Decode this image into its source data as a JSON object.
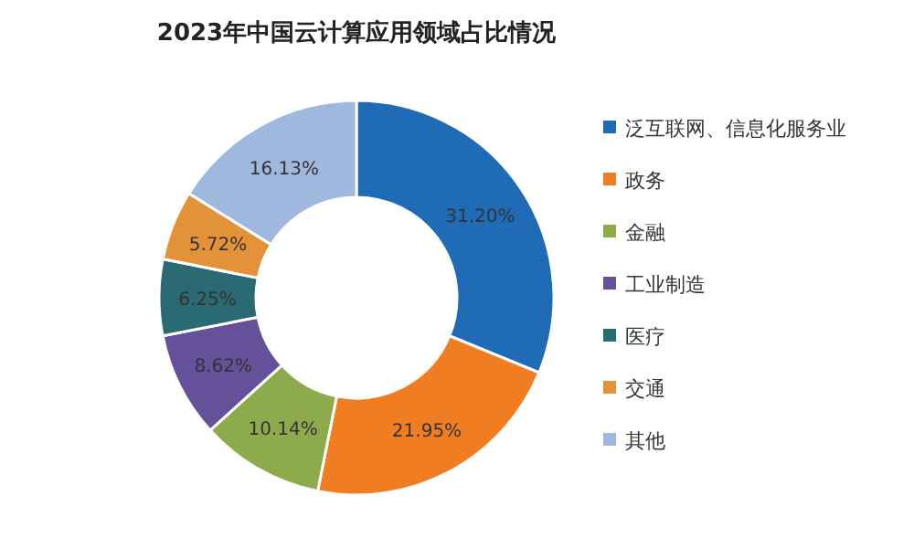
{
  "chart_data": {
    "type": "donut",
    "title": "2023年中国云计算应用领域占比情况",
    "categories": [
      "泛互联网、信息化服务业",
      "政务",
      "金融",
      "工业制造",
      "医疗",
      "交通",
      "其他"
    ],
    "values": [
      31.2,
      21.95,
      10.14,
      8.62,
      6.25,
      5.72,
      16.13
    ],
    "value_labels": [
      "31.20%",
      "21.95%",
      "10.14%",
      "8.62%",
      "6.25%",
      "5.72%",
      "16.13%"
    ],
    "colors": [
      "#1f6bb5",
      "#f07d22",
      "#8dab4c",
      "#65509a",
      "#2a6a72",
      "#e3923a",
      "#a0b8dd"
    ],
    "legend": "right"
  }
}
